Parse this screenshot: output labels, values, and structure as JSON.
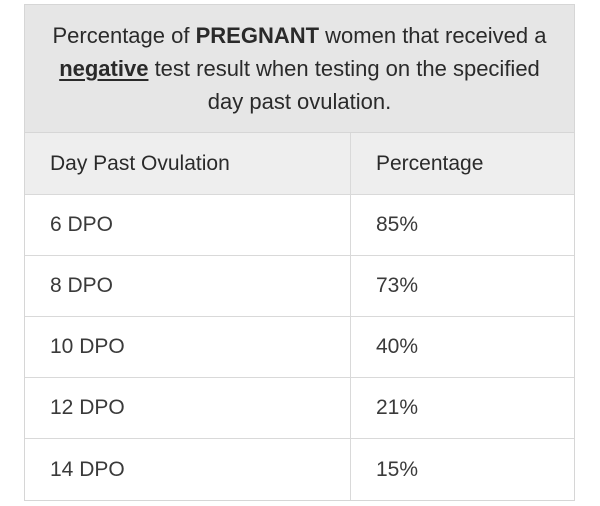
{
  "caption": {
    "part1": "Percentage of ",
    "emph1": "PREGNANT",
    "part2": " women that received a ",
    "emph2": "negative",
    "part3": " test result when testing on the specified day past ovulation."
  },
  "table": {
    "headers": [
      "Day Past Ovulation",
      "Percentage"
    ],
    "rows": [
      [
        "6 DPO",
        "85%"
      ],
      [
        "8 DPO",
        "73%"
      ],
      [
        "10 DPO",
        "40%"
      ],
      [
        "12 DPO",
        "21%"
      ],
      [
        "14 DPO",
        "15%"
      ]
    ]
  }
}
